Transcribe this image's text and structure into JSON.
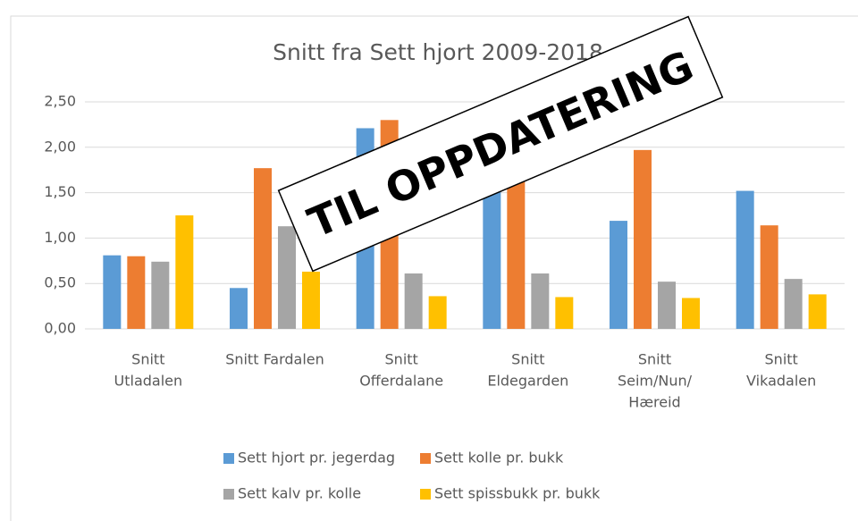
{
  "chart_data": {
    "type": "bar",
    "title": "Snitt fra Sett hjort 2009-2018",
    "annotation": "TIL OPPDATERING",
    "categories": [
      [
        "Snitt",
        "Utladalen"
      ],
      [
        "Snitt Fardalen"
      ],
      [
        "Snitt",
        "Offerdalane"
      ],
      [
        "Snitt",
        "Eldegarden"
      ],
      [
        "Snitt",
        "Seim/Nun/",
        "Hæreid"
      ],
      [
        "Snitt",
        "Vikadalen"
      ]
    ],
    "series": [
      {
        "name": "Sett hjort pr. jegerdag",
        "color": "#5b9bd5",
        "values": [
          0.81,
          0.45,
          2.21,
          1.7,
          1.19,
          1.52
        ]
      },
      {
        "name": "Sett kolle pr. bukk",
        "color": "#ed7d31",
        "values": [
          0.8,
          1.77,
          2.3,
          1.71,
          1.97,
          1.14
        ]
      },
      {
        "name": "Sett kalv pr. kolle",
        "color": "#a5a5a5",
        "values": [
          0.74,
          1.13,
          0.61,
          0.61,
          0.52,
          0.55
        ]
      },
      {
        "name": "Sett spissbukk pr. bukk",
        "color": "#ffc000",
        "values": [
          1.25,
          0.63,
          0.36,
          0.35,
          0.34,
          0.38
        ]
      }
    ],
    "ylim": [
      0,
      2.5
    ],
    "yticks": [
      {
        "value": 0,
        "label": "0,00"
      },
      {
        "value": 0.5,
        "label": "0,50"
      },
      {
        "value": 1,
        "label": "1,00"
      },
      {
        "value": 1.5,
        "label": "1,50"
      },
      {
        "value": 2,
        "label": "2,00"
      },
      {
        "value": 2.5,
        "label": "2,50"
      }
    ],
    "grid": true,
    "legend": "bottom"
  }
}
